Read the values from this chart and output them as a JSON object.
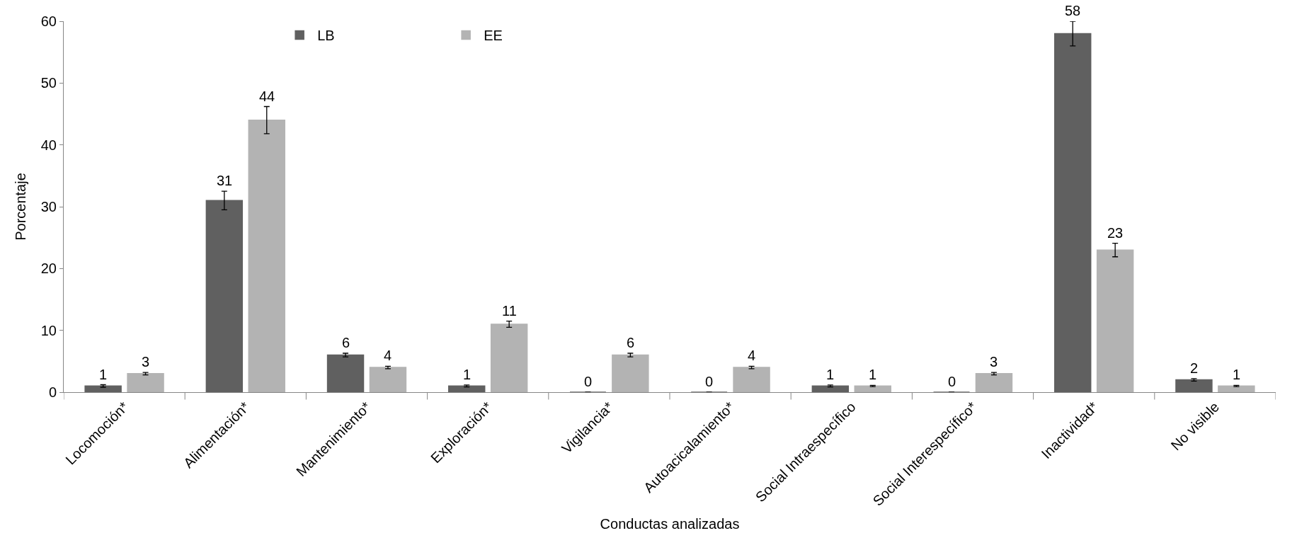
{
  "chart_data": {
    "type": "bar",
    "xlabel": "Conductas analizadas",
    "ylabel": "Porcentaje",
    "categories": [
      "Locomoción*",
      "Alimentación*",
      "Mantenimiento*",
      "Exploración*",
      "Vigilancia*",
      "Autoacicalamiento*",
      "Social Intraespecífico",
      "Social Interespecífico*",
      "Inactividad*",
      "No visible"
    ],
    "series": [
      {
        "name": "LB",
        "color": "#606060",
        "values": [
          1,
          31,
          6,
          1,
          0,
          0,
          1,
          0,
          58,
          2
        ],
        "errors": [
          0.2,
          1.5,
          0.3,
          0.15,
          0,
          0,
          0.15,
          0,
          2,
          0.2
        ]
      },
      {
        "name": "EE",
        "color": "#b3b3b3",
        "values": [
          3,
          44,
          4,
          11,
          6,
          4,
          1,
          3,
          23,
          1
        ],
        "errors": [
          0.2,
          2.2,
          0.2,
          0.5,
          0.3,
          0.2,
          0.1,
          0.2,
          1.1,
          0.1
        ]
      }
    ],
    "ylim": [
      0,
      60
    ],
    "yticks": [
      0,
      10,
      20,
      30,
      40,
      50,
      60
    ],
    "data_labels": true,
    "legend": "top"
  }
}
